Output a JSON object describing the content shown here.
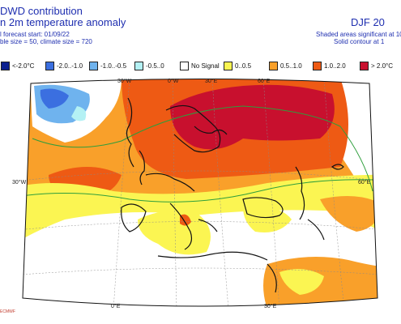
{
  "header": {
    "title_line1": "DWD contribution",
    "title_line2": "n 2m temperature anomaly",
    "subtitle_line1": "l forecast start: 01/09/22",
    "subtitle_line2": "ble size = 50, climate size = 720",
    "season": "DJF 20",
    "note_line1": "Shaded areas significant at 10",
    "note_line2": "Solid contour at 1"
  },
  "legend": {
    "items": [
      {
        "label": "<-2.0°C",
        "color": "#0a1f8f"
      },
      {
        "label": "-2.0..-1.0",
        "color": "#3b6fe0"
      },
      {
        "label": "-1.0..-0.5",
        "color": "#6fb3ee"
      },
      {
        "label": "-0.5..0",
        "color": "#b4f1f4"
      },
      {
        "label": "No Signal",
        "color": "#ffffff"
      },
      {
        "label": "0..0.5",
        "color": "#fbf552"
      },
      {
        "label": "0.5..1.0",
        "color": "#f9a02a"
      },
      {
        "label": "1.0..2.0",
        "color": "#ee5a14"
      },
      {
        "label": "> 2.0°C",
        "color": "#c8102e"
      }
    ]
  },
  "map": {
    "lon_labels": [
      "30°W",
      "0°W",
      "30°E",
      "60°E"
    ],
    "lat_labels": [
      "30°W",
      "60°E"
    ],
    "bottom_labels": [
      "0°E",
      "30°E"
    ]
  },
  "footer": {
    "credit": "ECMWF"
  }
}
